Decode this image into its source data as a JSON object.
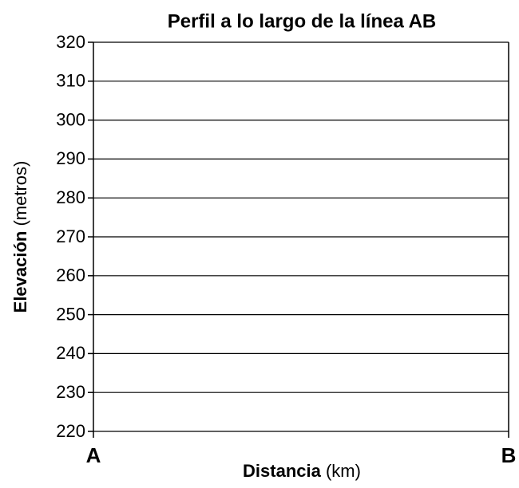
{
  "chart_data": {
    "type": "line",
    "title": "Perfil a lo largo de la línea AB",
    "ylabel": [
      "Elevación",
      "(metros)"
    ],
    "xlabel": [
      "Distancia",
      "(km)"
    ],
    "categories": [
      "A",
      "B"
    ],
    "ylim": [
      220,
      320
    ],
    "yticks": [
      220,
      230,
      240,
      250,
      260,
      270,
      280,
      290,
      300,
      310,
      320
    ],
    "grid": true,
    "color": "#000000"
  }
}
